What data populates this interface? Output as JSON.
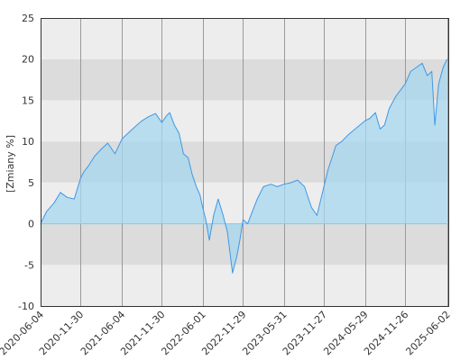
{
  "chart_data": {
    "type": "area",
    "title": "",
    "xlabel": "",
    "ylabel": "[Zmiany %]",
    "ylim": [
      -10,
      25
    ],
    "y_ticks": [
      -10,
      -5,
      0,
      5,
      10,
      15,
      20,
      25
    ],
    "y_tick_labels": [
      "-10",
      "-5",
      "0",
      "5",
      "10",
      "15",
      "20",
      "25"
    ],
    "x_ticks": [
      "2020-06-04",
      "2020-11-30",
      "2021-06-04",
      "2021-11-30",
      "2022-06-01",
      "2022-11-29",
      "2023-05-31",
      "2023-11-27",
      "2024-05-29",
      "2024-11-26",
      "2025-06-02"
    ],
    "grid": true,
    "series": [
      {
        "values": [
          {
            "x": "2020-06-04",
            "y": 0.0
          },
          {
            "x": "2020-07-01",
            "y": 1.5
          },
          {
            "x": "2020-08-03",
            "y": 2.5
          },
          {
            "x": "2020-09-01",
            "y": 3.8
          },
          {
            "x": "2020-10-01",
            "y": 3.2
          },
          {
            "x": "2020-11-02",
            "y": 3.0
          },
          {
            "x": "2020-11-30",
            "y": 5.5
          },
          {
            "x": "2020-12-15",
            "y": 6.3
          },
          {
            "x": "2021-01-04",
            "y": 7.0
          },
          {
            "x": "2021-02-01",
            "y": 8.2
          },
          {
            "x": "2021-03-01",
            "y": 9.0
          },
          {
            "x": "2021-04-01",
            "y": 9.8
          },
          {
            "x": "2021-05-04",
            "y": 8.5
          },
          {
            "x": "2021-06-04",
            "y": 10.3
          },
          {
            "x": "2021-07-01",
            "y": 11.0
          },
          {
            "x": "2021-08-02",
            "y": 11.8
          },
          {
            "x": "2021-09-01",
            "y": 12.5
          },
          {
            "x": "2021-10-01",
            "y": 13.0
          },
          {
            "x": "2021-11-02",
            "y": 13.4
          },
          {
            "x": "2021-11-30",
            "y": 12.3
          },
          {
            "x": "2021-12-20",
            "y": 13.1
          },
          {
            "x": "2022-01-04",
            "y": 13.5
          },
          {
            "x": "2022-01-25",
            "y": 12.0
          },
          {
            "x": "2022-02-15",
            "y": 11.0
          },
          {
            "x": "2022-03-07",
            "y": 8.5
          },
          {
            "x": "2022-03-28",
            "y": 8.0
          },
          {
            "x": "2022-04-15",
            "y": 6.0
          },
          {
            "x": "2022-05-04",
            "y": 4.5
          },
          {
            "x": "2022-05-20",
            "y": 3.5
          },
          {
            "x": "2022-06-01",
            "y": 2.0
          },
          {
            "x": "2022-06-15",
            "y": 0.5
          },
          {
            "x": "2022-07-01",
            "y": -2.0
          },
          {
            "x": "2022-07-20",
            "y": 1.0
          },
          {
            "x": "2022-08-10",
            "y": 3.0
          },
          {
            "x": "2022-09-01",
            "y": 1.0
          },
          {
            "x": "2022-09-20",
            "y": -1.0
          },
          {
            "x": "2022-10-13",
            "y": -6.0
          },
          {
            "x": "2022-11-01",
            "y": -4.0
          },
          {
            "x": "2022-11-15",
            "y": -2.0
          },
          {
            "x": "2022-11-29",
            "y": 0.5
          },
          {
            "x": "2022-12-20",
            "y": 0.0
          },
          {
            "x": "2023-01-10",
            "y": 1.5
          },
          {
            "x": "2023-02-01",
            "y": 3.0
          },
          {
            "x": "2023-03-01",
            "y": 4.5
          },
          {
            "x": "2023-04-03",
            "y": 4.8
          },
          {
            "x": "2023-05-02",
            "y": 4.5
          },
          {
            "x": "2023-05-31",
            "y": 4.8
          },
          {
            "x": "2023-07-03",
            "y": 5.0
          },
          {
            "x": "2023-08-01",
            "y": 5.3
          },
          {
            "x": "2023-09-01",
            "y": 4.5
          },
          {
            "x": "2023-10-02",
            "y": 2.0
          },
          {
            "x": "2023-10-27",
            "y": 1.0
          },
          {
            "x": "2023-11-27",
            "y": 4.5
          },
          {
            "x": "2023-12-15",
            "y": 6.5
          },
          {
            "x": "2024-01-02",
            "y": 8.0
          },
          {
            "x": "2024-01-20",
            "y": 9.5
          },
          {
            "x": "2024-02-15",
            "y": 10.0
          },
          {
            "x": "2024-03-15",
            "y": 10.8
          },
          {
            "x": "2024-04-15",
            "y": 11.5
          },
          {
            "x": "2024-05-29",
            "y": 12.5
          },
          {
            "x": "2024-06-20",
            "y": 12.8
          },
          {
            "x": "2024-07-15",
            "y": 13.5
          },
          {
            "x": "2024-08-05",
            "y": 11.5
          },
          {
            "x": "2024-08-25",
            "y": 12.0
          },
          {
            "x": "2024-09-15",
            "y": 14.0
          },
          {
            "x": "2024-10-15",
            "y": 15.5
          },
          {
            "x": "2024-11-26",
            "y": 17.0
          },
          {
            "x": "2024-12-20",
            "y": 18.5
          },
          {
            "x": "2025-01-15",
            "y": 19.0
          },
          {
            "x": "2025-02-10",
            "y": 19.5
          },
          {
            "x": "2025-03-05",
            "y": 18.0
          },
          {
            "x": "2025-03-25",
            "y": 18.5
          },
          {
            "x": "2025-04-08",
            "y": 12.0
          },
          {
            "x": "2025-04-25",
            "y": 17.0
          },
          {
            "x": "2025-05-15",
            "y": 19.0
          },
          {
            "x": "2025-06-02",
            "y": 20.0
          }
        ]
      }
    ]
  },
  "colors": {
    "background": "#ffffff",
    "band_light": "#ededed",
    "band_dark": "#dcdcdc",
    "line": "#3f98e4",
    "fill": "#a6d7ef",
    "zero_line": "#7fcde8",
    "gridline": "#9a9a9a",
    "frame": "#333333"
  }
}
